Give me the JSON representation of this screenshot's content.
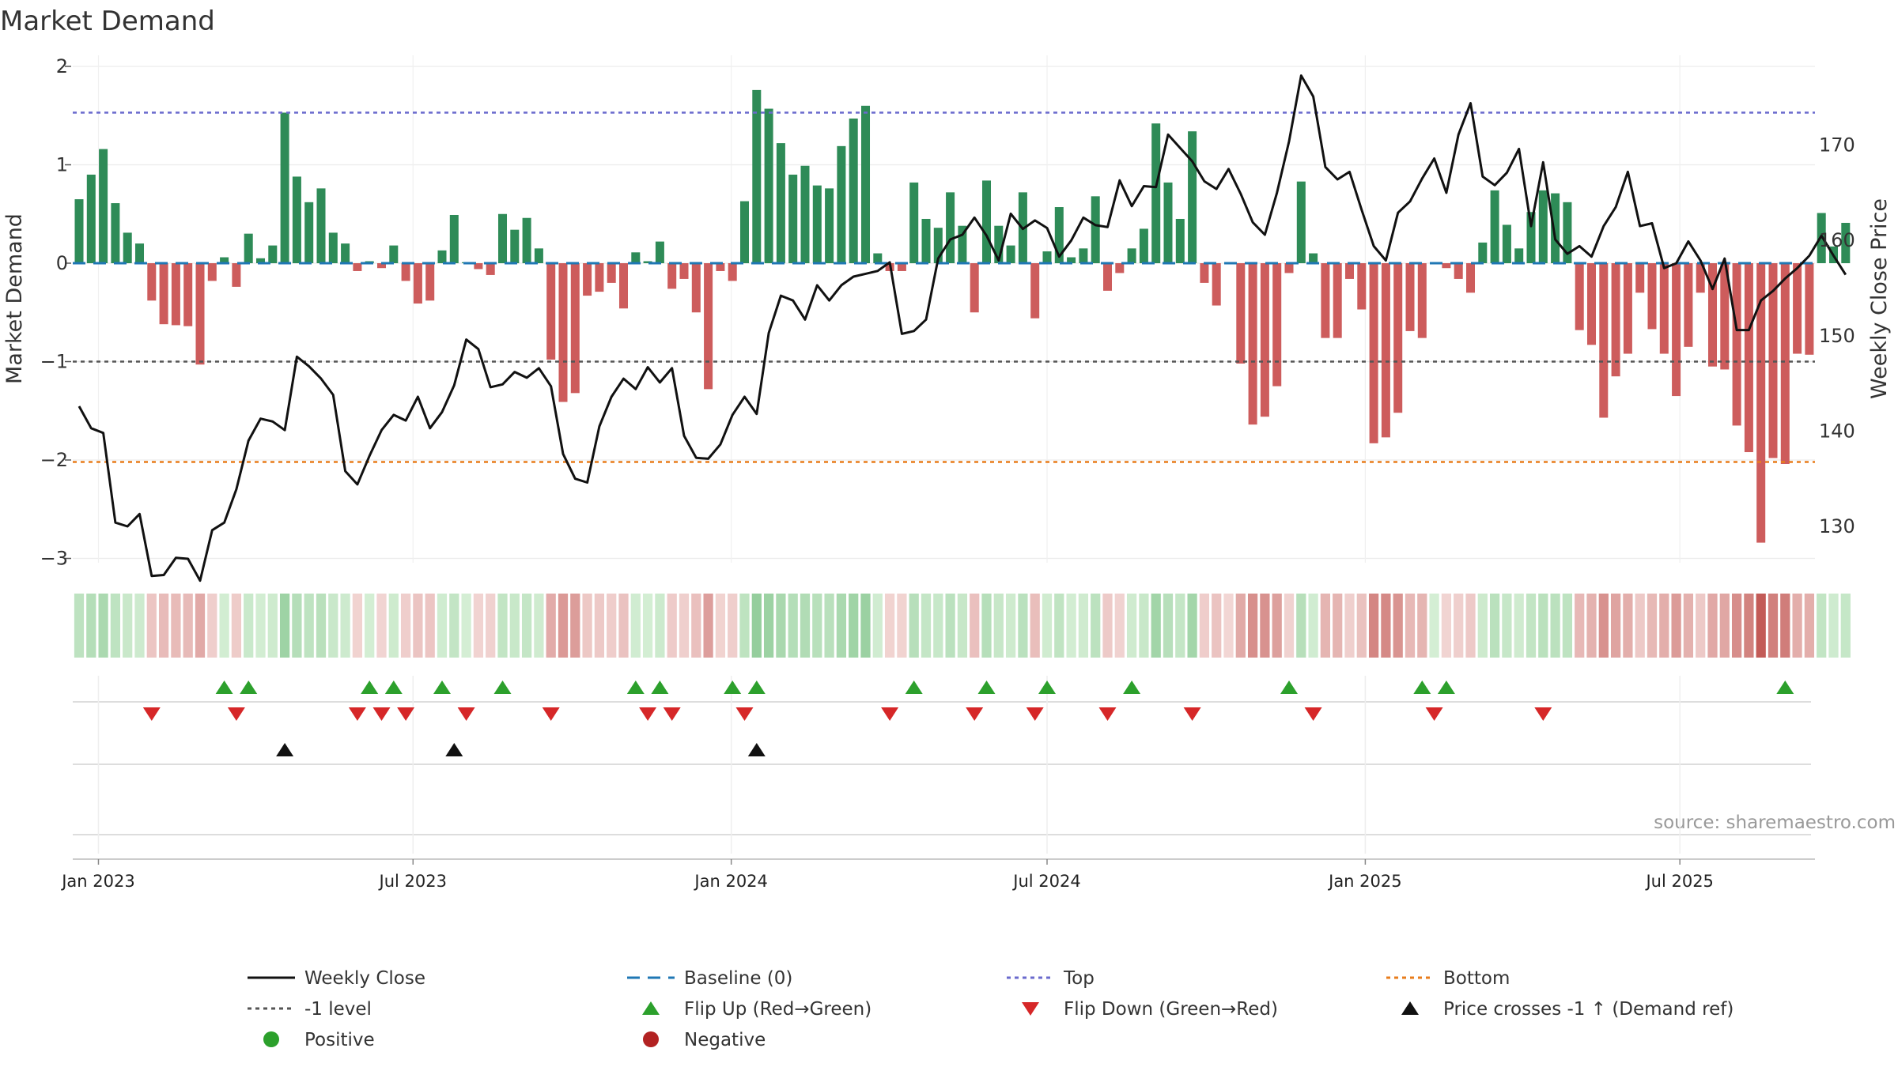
{
  "chart_data": {
    "type": "bar+line",
    "title": "Market Demand",
    "ylabel_left": "Market Demand",
    "ylabel_right": "Weekly Close Price",
    "source": "source: sharemaestro.com",
    "ylim_left": [
      -3,
      2
    ],
    "ylim_right": [
      125,
      177.3
    ],
    "yticks_left": [
      "2",
      "1",
      "0",
      "−1",
      "−2",
      "−3"
    ],
    "yticks_left_values": [
      2,
      1,
      0,
      -1,
      -2,
      -3
    ],
    "yticks_right": [
      "170",
      "160",
      "150",
      "140",
      "130"
    ],
    "yticks_right_values": [
      170,
      160,
      150,
      140,
      130
    ],
    "x_ticks": [
      "Jan 2023",
      "Jul 2023",
      "Jan 2024",
      "Jul 2024",
      "Jan 2025",
      "Jul 2025"
    ],
    "x_tick_weeks": [
      1.6,
      27.6,
      53.9,
      80.0,
      106.3,
      132.3
    ],
    "reference_lines": {
      "top": 1.53,
      "minus_one": -1.0,
      "bottom": -2.02,
      "baseline": 0
    },
    "demand": [
      0.65,
      0.9,
      1.16,
      0.61,
      0.31,
      0.2,
      -0.38,
      -0.62,
      -0.63,
      -0.64,
      -1.03,
      -0.18,
      0.06,
      -0.24,
      0.3,
      0.05,
      0.18,
      1.53,
      0.88,
      0.62,
      0.76,
      0.31,
      0.2,
      -0.08,
      0.02,
      -0.05,
      0.18,
      -0.18,
      -0.41,
      -0.38,
      0.13,
      0.49,
      0.01,
      -0.06,
      -0.12,
      0.5,
      0.34,
      0.46,
      0.15,
      -0.98,
      -1.41,
      -1.32,
      -0.33,
      -0.29,
      -0.2,
      -0.46,
      0.11,
      0.02,
      0.22,
      -0.26,
      -0.16,
      -0.5,
      -1.28,
      -0.08,
      -0.18,
      0.63,
      1.76,
      1.57,
      1.22,
      0.9,
      0.99,
      0.79,
      0.76,
      1.19,
      1.47,
      1.6,
      0.1,
      -0.08,
      -0.08,
      0.82,
      0.45,
      0.36,
      0.72,
      0.38,
      -0.5,
      0.84,
      0.38,
      0.18,
      0.72,
      -0.56,
      0.12,
      0.57,
      0.06,
      0.15,
      0.68,
      -0.28,
      -0.1,
      0.15,
      0.35,
      1.42,
      0.82,
      0.45,
      1.34,
      -0.2,
      -0.43,
      -0.01,
      -1.02,
      -1.64,
      -1.56,
      -1.25,
      -0.1,
      0.83,
      0.1,
      -0.76,
      -0.76,
      -0.16,
      -0.47,
      -1.83,
      -1.77,
      -1.52,
      -0.69,
      -0.76,
      0.01,
      -0.05,
      -0.16,
      -0.3,
      0.21,
      0.74,
      0.39,
      0.15,
      0.52,
      0.74,
      0.71,
      0.62,
      -0.68,
      -0.83,
      -1.57,
      -1.15,
      -0.92,
      -0.3,
      -0.67,
      -0.92,
      -1.35,
      -0.85,
      -0.3,
      -1.05,
      -1.08,
      -1.65,
      -1.92,
      -2.84,
      -1.98,
      -2.04,
      -0.92,
      -0.93,
      0.51,
      0.17,
      0.41
    ],
    "weekly_close": [
      142.6,
      140.3,
      139.8,
      130.4,
      130,
      131.3,
      124.8,
      124.9,
      126.7,
      126.6,
      124.3,
      129.6,
      130.4,
      133.9,
      139,
      141.3,
      141,
      140.1,
      147.8,
      146.8,
      145.5,
      143.8,
      135.8,
      134.4,
      137.4,
      140.1,
      141.7,
      141.1,
      143.6,
      140.3,
      142,
      144.8,
      149.6,
      148.6,
      144.6,
      144.9,
      146.2,
      145.6,
      146.6,
      144.7,
      137.6,
      135,
      134.6,
      140.5,
      143.6,
      145.5,
      144.4,
      146.7,
      145.1,
      146.6,
      139.5,
      137.2,
      137.1,
      138.6,
      141.7,
      143.6,
      141.8,
      150.3,
      154.2,
      153.7,
      151.7,
      155.3,
      153.7,
      155.3,
      156.2,
      156.5,
      156.8,
      157.7,
      150.2,
      150.5,
      151.7,
      158.1,
      160.1,
      160.6,
      162.4,
      160.5,
      157.9,
      162.8,
      161.2,
      162.1,
      161.3,
      158.3,
      160,
      162.4,
      161.6,
      161.4,
      166.3,
      163.6,
      165.7,
      165.6,
      171.1,
      169.7,
      168.3,
      166.2,
      165.4,
      167.5,
      164.9,
      161.9,
      160.6,
      165,
      170.4,
      177.3,
      175.1,
      167.7,
      166.4,
      167.2,
      163.2,
      159.4,
      157.9,
      162.9,
      164.1,
      166.5,
      168.6,
      165,
      171.1,
      174.4,
      166.7,
      165.8,
      167.1,
      169.6,
      161.5,
      168.2,
      160.1,
      158.6,
      159.4,
      158.3,
      161.5,
      163.5,
      167.2,
      161.5,
      161.8,
      157.1,
      157.6,
      159.9,
      157.9,
      154.9,
      158.1,
      150.6,
      150.6,
      153.7,
      154.7,
      156,
      157.1,
      158.4,
      160.5,
      158.4,
      156.4
    ],
    "heat_strip": "weekly demand-intensity colour band (green = positive, red = negative)",
    "flip_up_weeks": [
      12,
      14,
      24,
      26,
      30,
      35,
      46,
      48,
      54,
      56,
      69,
      75,
      80,
      87,
      100,
      111,
      113,
      141
    ],
    "flip_down_weeks": [
      6,
      13,
      23,
      25,
      27,
      32,
      39,
      47,
      49,
      55,
      67,
      74,
      79,
      85,
      92,
      102,
      112,
      121
    ],
    "price_cross_weeks": [
      17,
      31,
      56
    ],
    "legend": [
      {
        "label": "Weekly Close",
        "marker": "solid-line",
        "color": "#111111"
      },
      {
        "label": "Baseline (0)",
        "marker": "dashed-line",
        "color": "#1f77b4"
      },
      {
        "label": "Top",
        "marker": "dotted-line",
        "color": "#6a6acd"
      },
      {
        "label": "Bottom",
        "marker": "dotted-line",
        "color": "#e87d1c"
      },
      {
        "label": "-1 level",
        "marker": "dotted-line",
        "color": "#555555"
      },
      {
        "label": "Flip Up (Red→Green)",
        "marker": "triangle-up",
        "color": "#2ca02c"
      },
      {
        "label": "Flip Down (Green→Red)",
        "marker": "triangle-down",
        "color": "#d62728"
      },
      {
        "label": "Price crosses -1 ↑ (Demand ref)",
        "marker": "triangle-up",
        "color": "#111111"
      },
      {
        "label": "Positive",
        "marker": "circle",
        "color": "#2ca02c"
      },
      {
        "label": "Negative",
        "marker": "circle",
        "color": "#b22222"
      }
    ],
    "colors": {
      "positive_bar": "#2e8b57",
      "negative_bar": "#cd5c5c",
      "flip_up": "#2ca02c",
      "flip_down": "#d62728",
      "price_cross": "#111111",
      "close_line": "#111111"
    }
  }
}
